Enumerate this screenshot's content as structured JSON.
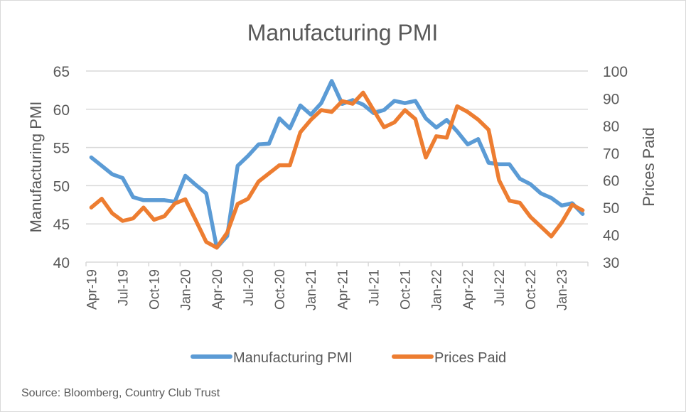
{
  "chart_data": {
    "type": "line",
    "title": "Manufacturing PMI",
    "xlabel": "",
    "ylabel": "Manufacturing PMI",
    "y2label": "Prices Paid",
    "ylim": [
      40,
      65
    ],
    "y2lim": [
      30,
      100
    ],
    "yticks": [
      "40",
      "45",
      "50",
      "55",
      "60",
      "65"
    ],
    "y2ticks": [
      "30",
      "40",
      "50",
      "60",
      "70",
      "80",
      "90",
      "100"
    ],
    "grid": true,
    "legend_position": "bottom",
    "x_tick_labels": [
      "Apr-19",
      "Jul-19",
      "Oct-19",
      "Jan-20",
      "Apr-20",
      "Jul-20",
      "Oct-20",
      "Jan-21",
      "Apr-21",
      "Jul-21",
      "Oct-21",
      "Jan-22",
      "Apr-22",
      "Jul-22",
      "Oct-22",
      "Jan-23"
    ],
    "x": [
      "Apr-19",
      "May-19",
      "Jun-19",
      "Jul-19",
      "Aug-19",
      "Sep-19",
      "Oct-19",
      "Nov-19",
      "Dec-19",
      "Jan-20",
      "Feb-20",
      "Mar-20",
      "Apr-20",
      "May-20",
      "Jun-20",
      "Jul-20",
      "Aug-20",
      "Sep-20",
      "Oct-20",
      "Nov-20",
      "Dec-20",
      "Jan-21",
      "Feb-21",
      "Mar-21",
      "Apr-21",
      "May-21",
      "Jun-21",
      "Jul-21",
      "Aug-21",
      "Sep-21",
      "Oct-21",
      "Nov-21",
      "Dec-21",
      "Jan-22",
      "Feb-22",
      "Mar-22",
      "Apr-22",
      "May-22",
      "Jun-22",
      "Jul-22",
      "Aug-22",
      "Sep-22",
      "Oct-22",
      "Nov-22",
      "Dec-22",
      "Jan-23",
      "Feb-23",
      "Mar-23"
    ],
    "series": [
      {
        "name": "Manufacturing PMI",
        "axis": "left",
        "color": "#5b9bd5",
        "values": [
          53.7,
          52.6,
          51.5,
          51.0,
          48.5,
          48.1,
          48.1,
          48.1,
          47.9,
          51.3,
          50.1,
          49.0,
          41.9,
          43.4,
          52.6,
          53.9,
          55.4,
          55.5,
          58.8,
          57.5,
          60.5,
          59.3,
          60.8,
          63.7,
          60.7,
          61.2,
          60.6,
          59.5,
          59.9,
          61.1,
          60.8,
          61.1,
          58.8,
          57.6,
          58.6,
          57.1,
          55.4,
          56.1,
          53.0,
          52.8,
          52.8,
          50.9,
          50.2,
          49.0,
          48.4,
          47.4,
          47.7,
          46.3
        ]
      },
      {
        "name": "Prices Paid",
        "axis": "right",
        "color": "#ed7d31",
        "values": [
          50.0,
          53.2,
          47.9,
          45.1,
          46.0,
          50.0,
          45.5,
          46.8,
          51.5,
          53.0,
          45.3,
          37.4,
          35.3,
          40.8,
          51.3,
          53.2,
          59.5,
          62.5,
          65.5,
          65.5,
          77.6,
          82.1,
          85.7,
          85.0,
          89.0,
          88.0,
          92.1,
          85.7,
          79.4,
          81.2,
          85.7,
          82.4,
          68.3,
          76.1,
          75.6,
          87.1,
          85.0,
          82.2,
          78.5,
          60.0,
          52.5,
          51.7,
          46.6,
          43.0,
          39.4,
          44.5,
          51.0,
          49.0
        ]
      }
    ]
  },
  "source": "Source: Bloomberg, Country Club Trust"
}
